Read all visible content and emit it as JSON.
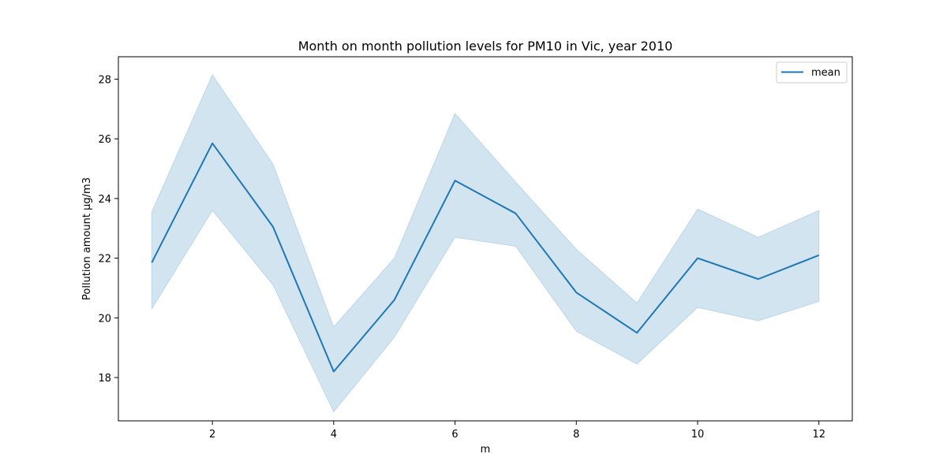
{
  "chart_data": {
    "type": "line",
    "title": "Month on month pollution levels for PM10 in Vic, year 2010",
    "xlabel": "m",
    "ylabel": "Pollution amount µg/m3",
    "x": [
      1,
      2,
      3,
      4,
      5,
      6,
      7,
      8,
      9,
      10,
      11,
      12
    ],
    "xlim": [
      0.45,
      12.55
    ],
    "ylim": [
      16.55,
      28.75
    ],
    "x_ticks": [
      2,
      4,
      6,
      8,
      10,
      12
    ],
    "y_ticks": [
      18,
      20,
      22,
      24,
      26,
      28
    ],
    "grid": false,
    "legend_position": "top-right",
    "series": [
      {
        "name": "mean",
        "color": "#1f77b4",
        "values": [
          21.85,
          25.85,
          23.05,
          18.2,
          20.6,
          24.6,
          23.5,
          20.85,
          19.5,
          22.0,
          21.3,
          22.1
        ],
        "ci_upper": [
          23.55,
          28.15,
          25.15,
          19.7,
          22.0,
          26.85,
          24.55,
          22.3,
          20.5,
          23.65,
          22.7,
          23.6
        ],
        "ci_lower": [
          20.3,
          23.6,
          21.1,
          16.85,
          19.35,
          22.7,
          22.4,
          19.55,
          18.45,
          20.35,
          19.9,
          20.55
        ],
        "band_color": "#1f77b4"
      }
    ]
  }
}
